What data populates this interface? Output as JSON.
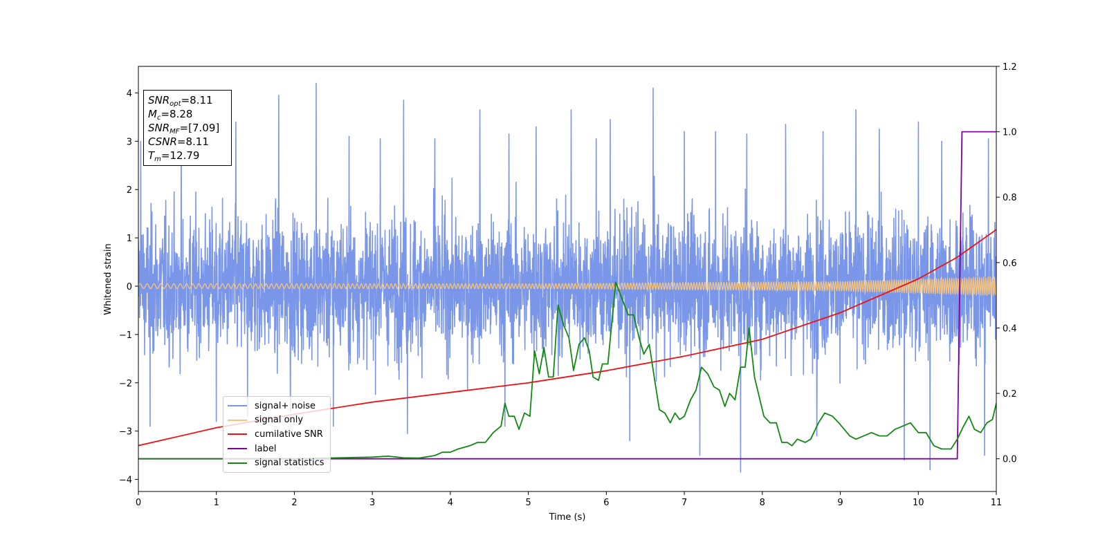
{
  "chart_data": {
    "type": "line",
    "xlabel": "Time (s)",
    "ylabel": "Whitened strain",
    "xlim": [
      0,
      11
    ],
    "ylim": [
      -4.25,
      4.55
    ],
    "y2lim": [
      -0.1,
      1.2
    ],
    "x_ticks": [
      "0",
      "1",
      "2",
      "3",
      "4",
      "5",
      "6",
      "7",
      "8",
      "9",
      "10",
      "11"
    ],
    "y_ticks": [
      "−4",
      "−3",
      "−2",
      "−1",
      "0",
      "1",
      "2",
      "3",
      "4"
    ],
    "y2_ticks": [
      "0.0",
      "0.2",
      "0.4",
      "0.6",
      "0.8",
      "1.0",
      "1.2"
    ],
    "grid": false,
    "legend_position": "lower-left",
    "annotation": {
      "lines": [
        {
          "sym": "SNR",
          "sub": "opt",
          "val": "=8.11"
        },
        {
          "sym": "M",
          "sub": "c",
          "val": "=8.28"
        },
        {
          "sym": "SNR",
          "sub": "MF",
          "val": "=[7.09]"
        },
        {
          "sym": "CSNR",
          "sub": "",
          "val": "=8.11"
        },
        {
          "sym": "T",
          "sub": "m",
          "val": "=12.79"
        }
      ]
    },
    "series": [
      {
        "name": "signal+ noise",
        "color": "#7a96e8",
        "axis": "left",
        "kind": "noise",
        "noise_peaks": [
          {
            "x": 0.03,
            "y": 3.0
          },
          {
            "x": 0.15,
            "y": -2.9
          },
          {
            "x": 0.55,
            "y": 3.4
          },
          {
            "x": 1.0,
            "y": -2.8
          },
          {
            "x": 1.25,
            "y": 3.4
          },
          {
            "x": 1.4,
            "y": -2.7
          },
          {
            "x": 1.8,
            "y": 3.95
          },
          {
            "x": 1.95,
            "y": -2.6
          },
          {
            "x": 2.28,
            "y": 4.2
          },
          {
            "x": 2.5,
            "y": -2.9
          },
          {
            "x": 2.7,
            "y": 3.1
          },
          {
            "x": 3.1,
            "y": 3.05
          },
          {
            "x": 3.4,
            "y": 3.85
          },
          {
            "x": 3.45,
            "y": -3.05
          },
          {
            "x": 3.8,
            "y": 3.05
          },
          {
            "x": 4.38,
            "y": 3.65
          },
          {
            "x": 4.7,
            "y": -2.9
          },
          {
            "x": 4.75,
            "y": 3.15
          },
          {
            "x": 5.1,
            "y": 3.3
          },
          {
            "x": 5.55,
            "y": 3.65
          },
          {
            "x": 5.87,
            "y": 3.05
          },
          {
            "x": 6.05,
            "y": 3.45
          },
          {
            "x": 6.3,
            "y": -3.2
          },
          {
            "x": 6.6,
            "y": 4.1
          },
          {
            "x": 7.0,
            "y": 3.2
          },
          {
            "x": 7.2,
            "y": -3.5
          },
          {
            "x": 7.4,
            "y": 3.2
          },
          {
            "x": 7.72,
            "y": -3.85
          },
          {
            "x": 7.8,
            "y": 3.15
          },
          {
            "x": 8.3,
            "y": 3.35
          },
          {
            "x": 8.7,
            "y": -3.1
          },
          {
            "x": 8.78,
            "y": 3.2
          },
          {
            "x": 9.2,
            "y": 3.65
          },
          {
            "x": 9.5,
            "y": 3.25
          },
          {
            "x": 9.82,
            "y": -3.6
          },
          {
            "x": 10.0,
            "y": 3.4
          },
          {
            "x": 10.15,
            "y": -3.8
          },
          {
            "x": 10.3,
            "y": 3.0
          },
          {
            "x": 10.85,
            "y": -3.5
          },
          {
            "x": 10.9,
            "y": 3.05
          }
        ]
      },
      {
        "name": "signal only",
        "color": "#f7c47a",
        "axis": "left",
        "kind": "chirp",
        "amplitude": [
          {
            "x": 0,
            "y": 0.05
          },
          {
            "x": 5,
            "y": 0.05
          },
          {
            "x": 9,
            "y": 0.1
          },
          {
            "x": 11,
            "y": 0.2
          }
        ]
      },
      {
        "name": "cumilative SNR",
        "color": "#ee1111",
        "axis": "left",
        "points": [
          {
            "x": 0,
            "y": -3.3
          },
          {
            "x": 1,
            "y": -2.93
          },
          {
            "x": 2,
            "y": -2.65
          },
          {
            "x": 3,
            "y": -2.4
          },
          {
            "x": 4,
            "y": -2.2
          },
          {
            "x": 5,
            "y": -2.0
          },
          {
            "x": 6,
            "y": -1.75
          },
          {
            "x": 7,
            "y": -1.45
          },
          {
            "x": 8,
            "y": -1.1
          },
          {
            "x": 9,
            "y": -0.55
          },
          {
            "x": 10,
            "y": 0.15
          },
          {
            "x": 10.5,
            "y": 0.6
          },
          {
            "x": 11,
            "y": 1.17
          }
        ]
      },
      {
        "name": "label",
        "color": "#7f00a0",
        "axis": "right",
        "points": [
          {
            "x": 0,
            "y": 0.0
          },
          {
            "x": 10.5,
            "y": 0.0
          },
          {
            "x": 10.56,
            "y": 1.0
          },
          {
            "x": 11,
            "y": 1.0
          }
        ]
      },
      {
        "name": "signal statistics",
        "color": "#118811",
        "axis": "right",
        "points": [
          {
            "x": 0,
            "y": 0.0
          },
          {
            "x": 1.0,
            "y": 0.0
          },
          {
            "x": 2.0,
            "y": 0.0
          },
          {
            "x": 3.0,
            "y": 0.005
          },
          {
            "x": 3.2,
            "y": 0.008
          },
          {
            "x": 3.4,
            "y": 0.003
          },
          {
            "x": 3.6,
            "y": 0.002
          },
          {
            "x": 3.8,
            "y": 0.01
          },
          {
            "x": 3.9,
            "y": 0.02
          },
          {
            "x": 4.0,
            "y": 0.02
          },
          {
            "x": 4.1,
            "y": 0.03
          },
          {
            "x": 4.25,
            "y": 0.04
          },
          {
            "x": 4.35,
            "y": 0.05
          },
          {
            "x": 4.45,
            "y": 0.05
          },
          {
            "x": 4.55,
            "y": 0.08
          },
          {
            "x": 4.65,
            "y": 0.1
          },
          {
            "x": 4.7,
            "y": 0.17
          },
          {
            "x": 4.75,
            "y": 0.13
          },
          {
            "x": 4.82,
            "y": 0.13
          },
          {
            "x": 4.88,
            "y": 0.09
          },
          {
            "x": 4.95,
            "y": 0.14
          },
          {
            "x": 5.02,
            "y": 0.13
          },
          {
            "x": 5.08,
            "y": 0.33
          },
          {
            "x": 5.14,
            "y": 0.26
          },
          {
            "x": 5.2,
            "y": 0.34
          },
          {
            "x": 5.26,
            "y": 0.25
          },
          {
            "x": 5.32,
            "y": 0.25
          },
          {
            "x": 5.38,
            "y": 0.47
          },
          {
            "x": 5.45,
            "y": 0.41
          },
          {
            "x": 5.52,
            "y": 0.37
          },
          {
            "x": 5.58,
            "y": 0.27
          },
          {
            "x": 5.65,
            "y": 0.35
          },
          {
            "x": 5.72,
            "y": 0.37
          },
          {
            "x": 5.78,
            "y": 0.33
          },
          {
            "x": 5.83,
            "y": 0.25
          },
          {
            "x": 5.9,
            "y": 0.24
          },
          {
            "x": 5.95,
            "y": 0.29
          },
          {
            "x": 6.02,
            "y": 0.29
          },
          {
            "x": 6.12,
            "y": 0.54
          },
          {
            "x": 6.2,
            "y": 0.49
          },
          {
            "x": 6.28,
            "y": 0.44
          },
          {
            "x": 6.35,
            "y": 0.44
          },
          {
            "x": 6.42,
            "y": 0.37
          },
          {
            "x": 6.48,
            "y": 0.32
          },
          {
            "x": 6.55,
            "y": 0.35
          },
          {
            "x": 6.62,
            "y": 0.24
          },
          {
            "x": 6.68,
            "y": 0.15
          },
          {
            "x": 6.75,
            "y": 0.14
          },
          {
            "x": 6.82,
            "y": 0.11
          },
          {
            "x": 6.88,
            "y": 0.14
          },
          {
            "x": 6.94,
            "y": 0.12
          },
          {
            "x": 7.0,
            "y": 0.13
          },
          {
            "x": 7.08,
            "y": 0.18
          },
          {
            "x": 7.15,
            "y": 0.21
          },
          {
            "x": 7.22,
            "y": 0.28
          },
          {
            "x": 7.3,
            "y": 0.26
          },
          {
            "x": 7.38,
            "y": 0.22
          },
          {
            "x": 7.45,
            "y": 0.21
          },
          {
            "x": 7.52,
            "y": 0.16
          },
          {
            "x": 7.58,
            "y": 0.2
          },
          {
            "x": 7.65,
            "y": 0.18
          },
          {
            "x": 7.72,
            "y": 0.28
          },
          {
            "x": 7.78,
            "y": 0.28
          },
          {
            "x": 7.83,
            "y": 0.4
          },
          {
            "x": 7.9,
            "y": 0.25
          },
          {
            "x": 7.97,
            "y": 0.18
          },
          {
            "x": 8.02,
            "y": 0.13
          },
          {
            "x": 8.1,
            "y": 0.11
          },
          {
            "x": 8.18,
            "y": 0.11
          },
          {
            "x": 8.25,
            "y": 0.05
          },
          {
            "x": 8.32,
            "y": 0.05
          },
          {
            "x": 8.38,
            "y": 0.04
          },
          {
            "x": 8.45,
            "y": 0.06
          },
          {
            "x": 8.55,
            "y": 0.05
          },
          {
            "x": 8.62,
            "y": 0.06
          },
          {
            "x": 8.72,
            "y": 0.11
          },
          {
            "x": 8.8,
            "y": 0.14
          },
          {
            "x": 8.9,
            "y": 0.13
          },
          {
            "x": 8.98,
            "y": 0.11
          },
          {
            "x": 9.05,
            "y": 0.09
          },
          {
            "x": 9.12,
            "y": 0.07
          },
          {
            "x": 9.2,
            "y": 0.06
          },
          {
            "x": 9.3,
            "y": 0.07
          },
          {
            "x": 9.4,
            "y": 0.08
          },
          {
            "x": 9.5,
            "y": 0.07
          },
          {
            "x": 9.6,
            "y": 0.07
          },
          {
            "x": 9.7,
            "y": 0.09
          },
          {
            "x": 9.8,
            "y": 0.1
          },
          {
            "x": 9.9,
            "y": 0.11
          },
          {
            "x": 10.0,
            "y": 0.08
          },
          {
            "x": 10.1,
            "y": 0.08
          },
          {
            "x": 10.2,
            "y": 0.04
          },
          {
            "x": 10.3,
            "y": 0.03
          },
          {
            "x": 10.42,
            "y": 0.03
          },
          {
            "x": 10.5,
            "y": 0.06
          },
          {
            "x": 10.58,
            "y": 0.1
          },
          {
            "x": 10.65,
            "y": 0.13
          },
          {
            "x": 10.72,
            "y": 0.09
          },
          {
            "x": 10.8,
            "y": 0.08
          },
          {
            "x": 10.88,
            "y": 0.11
          },
          {
            "x": 10.95,
            "y": 0.12
          },
          {
            "x": 11.0,
            "y": 0.17
          }
        ]
      }
    ]
  }
}
